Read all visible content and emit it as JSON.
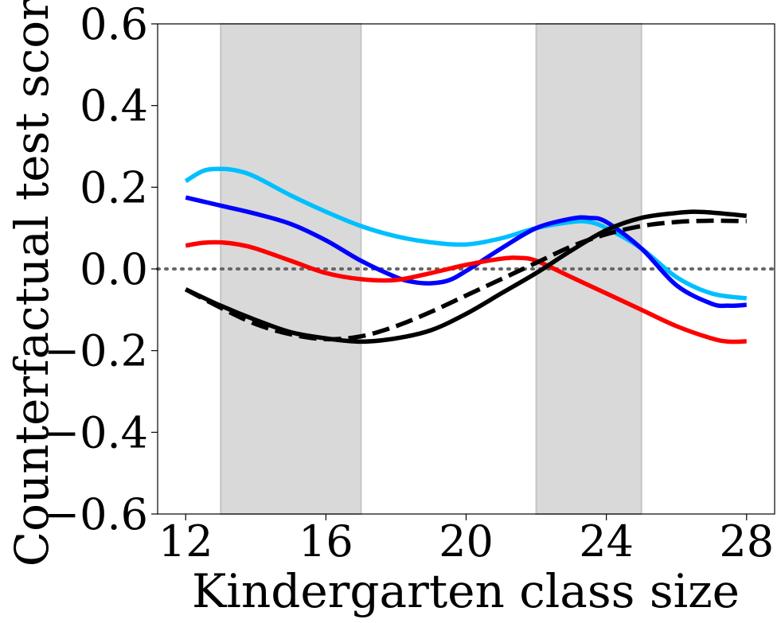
{
  "chart_data": {
    "type": "line",
    "title": "",
    "xlabel": "Kindergarten class size",
    "ylabel": "Counterfactual test score",
    "xlim": [
      11.2,
      28.8
    ],
    "ylim": [
      -0.6,
      0.6
    ],
    "x_ticks": [
      12,
      16,
      20,
      24,
      28
    ],
    "y_ticks": [
      0.6,
      0.4,
      0.2,
      0.0,
      -0.2,
      -0.4,
      -0.6
    ],
    "x_tick_labels": [
      "12",
      "16",
      "20",
      "24",
      "28"
    ],
    "y_tick_labels": [
      "0.6",
      "0.4",
      "0.2",
      "0.0",
      "−0.2",
      "−0.4",
      "−0.6"
    ],
    "grid": false,
    "shaded_regions": [
      {
        "x_start": 13,
        "x_end": 17,
        "color": "#d9d9d9"
      },
      {
        "x_start": 22,
        "x_end": 25,
        "color": "#d9d9d9"
      }
    ],
    "reference_line": {
      "y": 0.0,
      "style": "dotted",
      "color": "#666666"
    },
    "series": [
      {
        "color": "#00bfff",
        "style": "solid",
        "x": [
          12,
          12.5,
          13,
          13.5,
          14,
          15,
          16,
          17,
          18,
          19,
          20,
          21,
          22,
          23,
          23.5,
          24,
          25,
          26,
          27,
          28
        ],
        "y": [
          0.215,
          0.24,
          0.245,
          0.24,
          0.225,
          0.18,
          0.14,
          0.105,
          0.08,
          0.065,
          0.06,
          0.075,
          0.1,
          0.115,
          0.115,
          0.1,
          0.05,
          -0.02,
          -0.06,
          -0.072
        ]
      },
      {
        "color": "#0000ff",
        "style": "solid",
        "x": [
          12,
          13,
          14,
          15,
          16,
          17,
          18,
          18.5,
          19,
          19.5,
          20,
          21,
          22,
          23,
          23.5,
          24,
          25,
          26,
          27,
          27.5,
          28
        ],
        "y": [
          0.175,
          0.155,
          0.135,
          0.11,
          0.07,
          0.02,
          -0.02,
          -0.032,
          -0.035,
          -0.028,
          -0.005,
          0.05,
          0.1,
          0.123,
          0.125,
          0.115,
          0.05,
          -0.04,
          -0.085,
          -0.09,
          -0.088
        ]
      },
      {
        "color": "#ff0000",
        "style": "solid",
        "x": [
          12,
          12.5,
          13,
          13.5,
          14,
          15,
          16,
          17,
          18,
          19,
          20,
          21,
          21.5,
          22,
          23,
          24,
          25,
          26,
          27,
          27.5,
          28
        ],
        "y": [
          0.057,
          0.064,
          0.065,
          0.06,
          0.05,
          0.02,
          -0.01,
          -0.025,
          -0.027,
          -0.01,
          0.01,
          0.025,
          0.027,
          0.02,
          -0.02,
          -0.06,
          -0.1,
          -0.14,
          -0.17,
          -0.178,
          -0.177
        ]
      },
      {
        "color": "#000000",
        "style": "solid",
        "x": [
          12,
          13,
          14,
          15,
          16,
          17,
          18,
          19,
          20,
          21,
          22,
          23,
          24,
          25,
          26,
          26.5,
          27,
          28
        ],
        "y": [
          -0.05,
          -0.09,
          -0.125,
          -0.155,
          -0.17,
          -0.178,
          -0.17,
          -0.15,
          -0.11,
          -0.06,
          -0.01,
          0.045,
          0.095,
          0.125,
          0.137,
          0.14,
          0.138,
          0.13
        ]
      },
      {
        "color": "#000000",
        "style": "dashed",
        "x": [
          12,
          13,
          14,
          15,
          16,
          17,
          18,
          19,
          20,
          21,
          22,
          23,
          24,
          25,
          26,
          27,
          28
        ],
        "y": [
          -0.05,
          -0.095,
          -0.135,
          -0.16,
          -0.172,
          -0.165,
          -0.14,
          -0.105,
          -0.065,
          -0.025,
          0.015,
          0.055,
          0.085,
          0.105,
          0.115,
          0.118,
          0.117
        ]
      }
    ]
  }
}
